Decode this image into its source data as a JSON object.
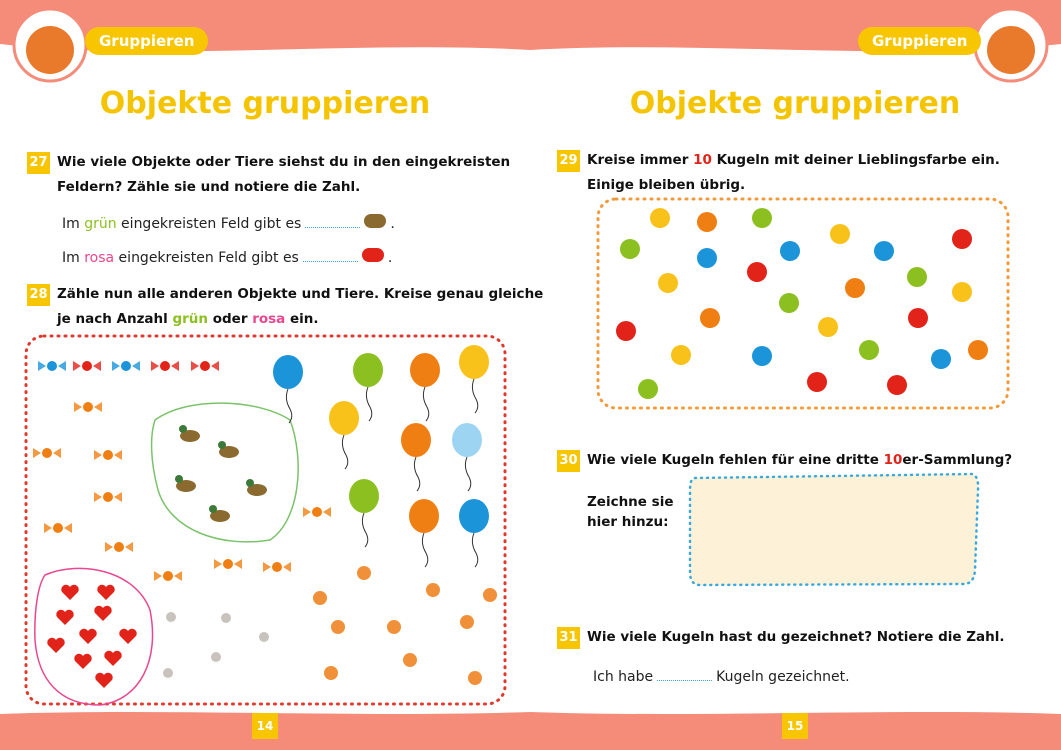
{
  "left": {
    "tab": "Gruppieren",
    "title": "Objekte gruppieren",
    "page_number": 14,
    "ex27": {
      "number": "27",
      "lines": [
        [
          {
            "text": "Wie viele Objekte oder Tiere siehst du in den eingekreisten"
          }
        ],
        [
          {
            "text": "Feldern? Zähle sie und notiere die Zahl."
          }
        ]
      ],
      "answers": [
        [
          {
            "text": "Im "
          },
          {
            "text": "grün",
            "color": "#8cc021"
          },
          {
            "text": " eingekreisten Feld gibt es"
          },
          {
            "text": "."
          }
        ],
        [
          {
            "text": "Im "
          },
          {
            "text": "rosa",
            "color": "#e9478f"
          },
          {
            "text": " eingekreisten Feld gibt es"
          },
          {
            "text": "."
          }
        ]
      ]
    },
    "ex28": {
      "number": "28",
      "lines": [
        [
          {
            "text": "Zähle nun alle anderen Objekte und Tiere. Kreise genau gleiche"
          }
        ],
        [
          {
            "text": "je nach Anzahl "
          },
          {
            "text": "grün",
            "color": "#8cc021"
          },
          {
            "text": " oder "
          },
          {
            "text": "rosa",
            "color": "#e9478f"
          },
          {
            "text": " ein."
          }
        ]
      ]
    }
  },
  "right": {
    "tab": "Gruppieren",
    "title": "Objekte gruppieren",
    "page_number": 15,
    "ex29": {
      "number": "29",
      "lines": [
        [
          {
            "text": "Kreise immer "
          },
          {
            "text": "10",
            "color": "#e2231a"
          },
          {
            "text": " Kugeln mit deiner Lieblingsfarbe ein."
          }
        ],
        [
          {
            "text": "Einige bleiben übrig."
          }
        ]
      ]
    },
    "ex30": {
      "number": "30",
      "lines": [
        [
          {
            "text": "Wie viele Kugeln fehlen für eine dritte "
          },
          {
            "text": "10",
            "color": "#e2231a"
          },
          {
            "text": "er-Sammlung?"
          }
        ]
      ],
      "hint": [
        "Zeichne sie",
        "hier hinzu:"
      ]
    },
    "ex31": {
      "number": "31",
      "lines": [
        [
          {
            "text": "Wie viele Kugeln hast du gezeichnet? Notiere die Zahl."
          }
        ]
      ],
      "answer": [
        {
          "text": "Ich habe"
        },
        {
          "text": "Kugeln gezeichnet."
        }
      ]
    }
  }
}
